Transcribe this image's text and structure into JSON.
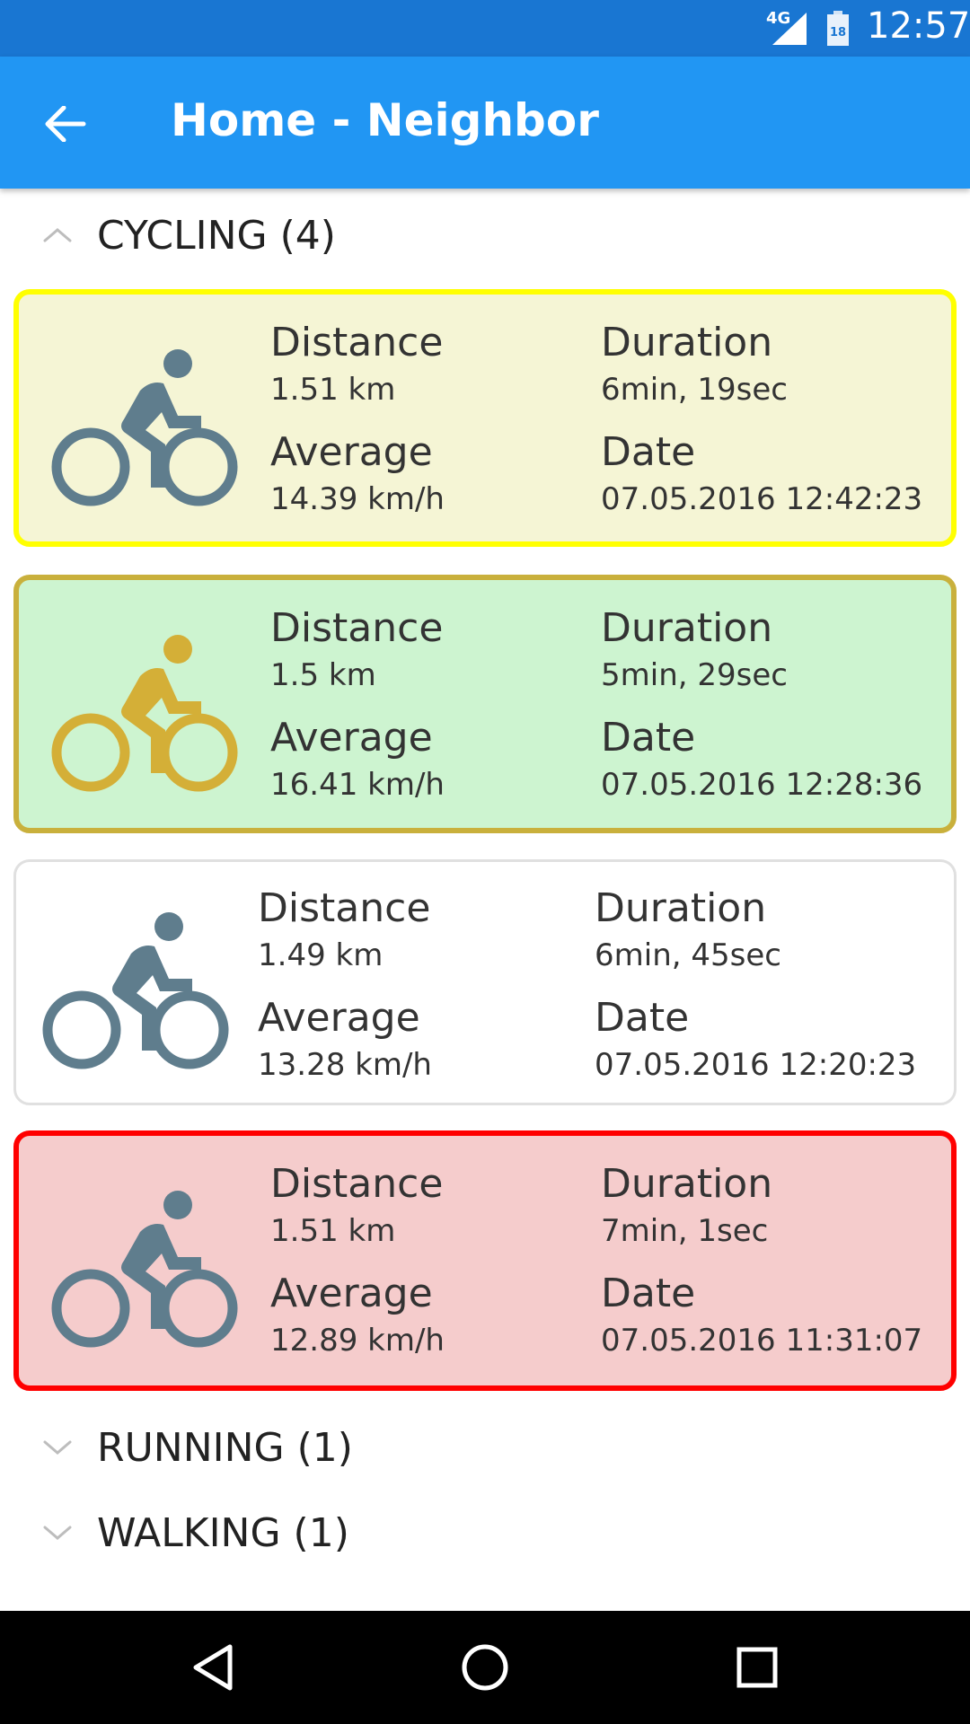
{
  "status_bar": {
    "network": "4G",
    "battery_level": "18",
    "time": "12:57"
  },
  "app_bar": {
    "title": "Home - Neighbor"
  },
  "groups": [
    {
      "label": "CYCLING (4)",
      "expanded": true,
      "items": [
        {
          "border_color": "#ffff00",
          "fill_color": "#f5f5d5",
          "icon_color": "#5f7d8d",
          "icon": "bike-icon",
          "distance_label": "Distance",
          "distance": "1.51 km",
          "duration_label": "Duration",
          "duration": "6min, 19sec",
          "average_label": "Average",
          "average": "14.39 km/h",
          "date_label": "Date",
          "date": "07.05.2016 12:42:23"
        },
        {
          "border_color": "#c9b03c",
          "fill_color": "#cdf4d0",
          "icon_color": "#d4af37",
          "icon": "bike-icon",
          "distance_label": "Distance",
          "distance": "1.5 km",
          "duration_label": "Duration",
          "duration": "5min, 29sec",
          "average_label": "Average",
          "average": "16.41 km/h",
          "date_label": "Date",
          "date": "07.05.2016 12:28:36"
        },
        {
          "border_color": "#e0e0e0",
          "fill_color": "#ffffff",
          "icon_color": "#5f7d8d",
          "icon": "bike-icon",
          "distance_label": "Distance",
          "distance": "1.49 km",
          "duration_label": "Duration",
          "duration": "6min, 45sec",
          "average_label": "Average",
          "average": "13.28 km/h",
          "date_label": "Date",
          "date": "07.05.2016 12:20:23"
        },
        {
          "border_color": "#ff0000",
          "fill_color": "#f5cccc",
          "icon_color": "#5f7d8d",
          "icon": "bike-icon",
          "distance_label": "Distance",
          "distance": "1.51 km",
          "duration_label": "Duration",
          "duration": "7min, 1sec",
          "average_label": "Average",
          "average": "12.89 km/h",
          "date_label": "Date",
          "date": "07.05.2016 11:31:07"
        }
      ]
    },
    {
      "label": "RUNNING (1)",
      "expanded": false
    },
    {
      "label": "WALKING (1)",
      "expanded": false
    }
  ],
  "colors": {
    "status_bar": "#1976d2",
    "app_bar": "#2196f3",
    "nav_bar": "#000000"
  }
}
